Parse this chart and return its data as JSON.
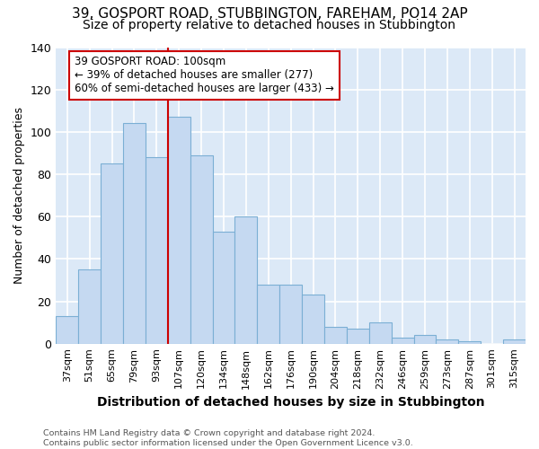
{
  "title": "39, GOSPORT ROAD, STUBBINGTON, FAREHAM, PO14 2AP",
  "subtitle": "Size of property relative to detached houses in Stubbington",
  "xlabel": "Distribution of detached houses by size in Stubbington",
  "ylabel": "Number of detached properties",
  "categories": [
    "37sqm",
    "51sqm",
    "65sqm",
    "79sqm",
    "93sqm",
    "107sqm",
    "120sqm",
    "134sqm",
    "148sqm",
    "162sqm",
    "176sqm",
    "190sqm",
    "204sqm",
    "218sqm",
    "232sqm",
    "246sqm",
    "259sqm",
    "273sqm",
    "287sqm",
    "301sqm",
    "315sqm"
  ],
  "values": [
    13,
    35,
    85,
    104,
    88,
    107,
    89,
    53,
    60,
    28,
    28,
    23,
    8,
    7,
    10,
    3,
    4,
    2,
    1,
    0,
    2
  ],
  "bar_color": "#c5d9f1",
  "bar_edge_color": "#7bafd4",
  "bg_color": "#dce9f7",
  "grid_color": "#ffffff",
  "vline_x": 5,
  "vline_color": "#cc0000",
  "annotation_line1": "39 GOSPORT ROAD: 100sqm",
  "annotation_line2": "← 39% of detached houses are smaller (277)",
  "annotation_line3": "60% of semi-detached houses are larger (433) →",
  "annotation_box_color": "#ffffff",
  "annotation_box_edge": "#cc0000",
  "footer_text": "Contains HM Land Registry data © Crown copyright and database right 2024.\nContains public sector information licensed under the Open Government Licence v3.0.",
  "ylim": [
    0,
    140
  ],
  "yticks": [
    0,
    20,
    40,
    60,
    80,
    100,
    120,
    140
  ],
  "title_fontsize": 11,
  "subtitle_fontsize": 10,
  "ylabel_fontsize": 9,
  "xlabel_fontsize": 10
}
